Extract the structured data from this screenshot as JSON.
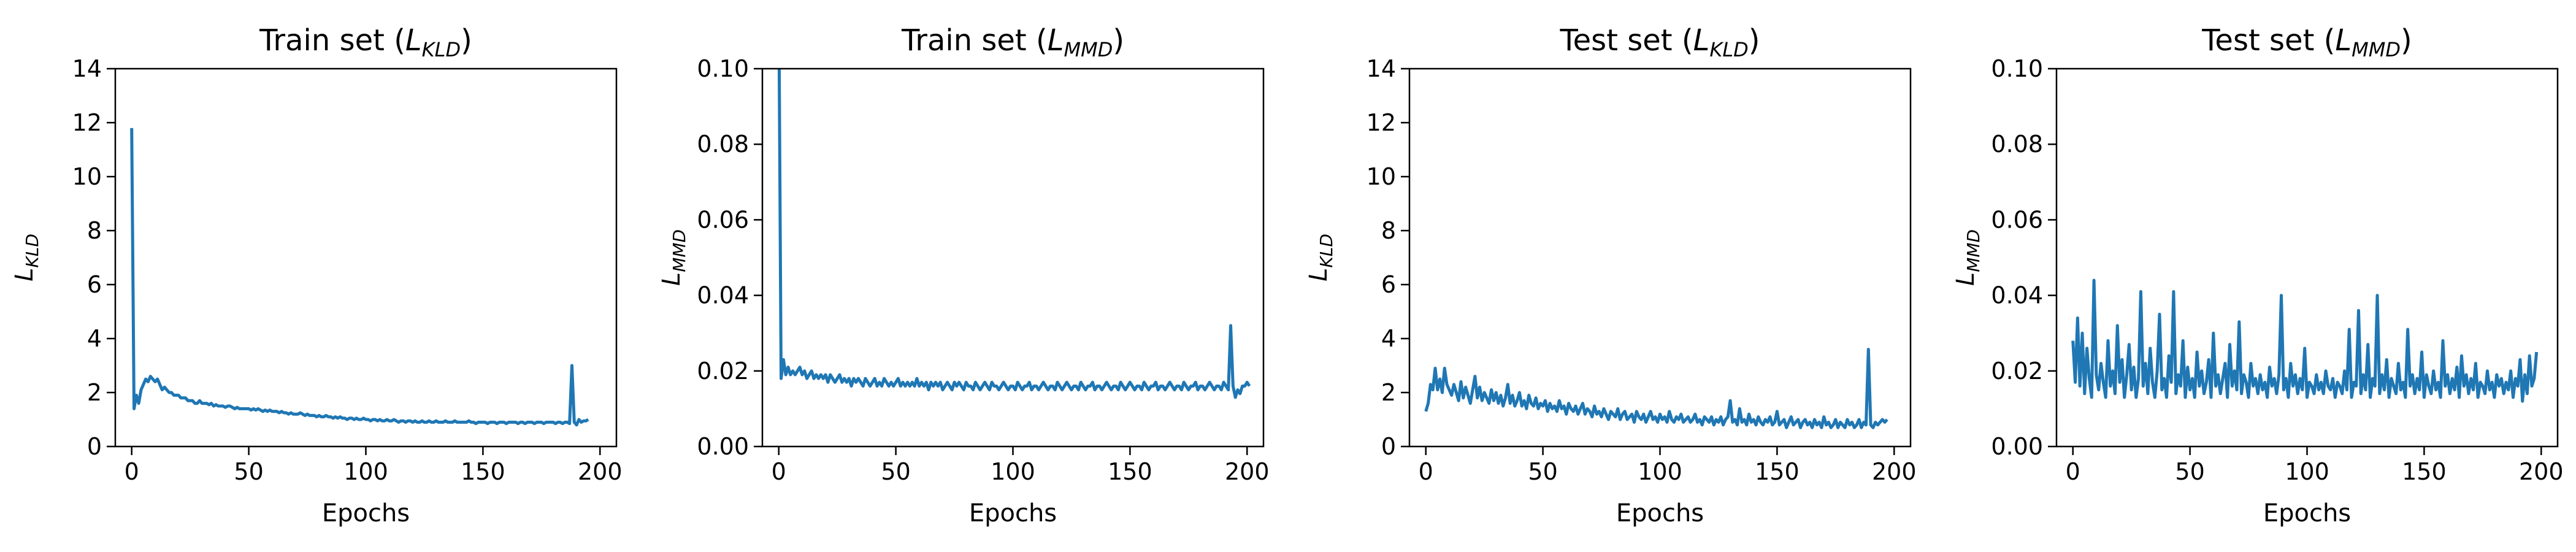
{
  "figure": {
    "line_color": "#1f77b4"
  },
  "chart_data": [
    {
      "type": "line",
      "title": "Train set (",
      "title_sym": "L",
      "title_sub": "KLD",
      "title_end": ")",
      "ylabel_sym": "L",
      "ylabel_sub": "KLD",
      "xlabel": "Epochs",
      "xlim": [
        -7,
        207
      ],
      "ylim": [
        0,
        14
      ],
      "x_ticks": [
        0,
        50,
        100,
        150,
        200
      ],
      "y_ticks": [
        0,
        2,
        4,
        6,
        8,
        10,
        12,
        14
      ],
      "y_tick_labels": [
        "0",
        "2",
        "4",
        "6",
        "8",
        "10",
        "12",
        "14"
      ],
      "series": [
        {
          "x_start": 0,
          "x_step": 1,
          "values": [
            11.8,
            1.4,
            1.9,
            1.6,
            2.1,
            2.3,
            2.5,
            2.4,
            2.6,
            2.5,
            2.4,
            2.5,
            2.3,
            2.1,
            2.2,
            2.1,
            2.0,
            2.0,
            1.9,
            1.9,
            1.9,
            1.8,
            1.8,
            1.8,
            1.7,
            1.7,
            1.7,
            1.6,
            1.6,
            1.7,
            1.6,
            1.6,
            1.6,
            1.55,
            1.6,
            1.5,
            1.55,
            1.5,
            1.5,
            1.5,
            1.45,
            1.5,
            1.5,
            1.45,
            1.4,
            1.45,
            1.4,
            1.4,
            1.4,
            1.4,
            1.4,
            1.35,
            1.4,
            1.35,
            1.4,
            1.35,
            1.3,
            1.35,
            1.3,
            1.35,
            1.3,
            1.3,
            1.3,
            1.25,
            1.3,
            1.25,
            1.25,
            1.2,
            1.25,
            1.2,
            1.2,
            1.2,
            1.25,
            1.2,
            1.15,
            1.2,
            1.15,
            1.15,
            1.15,
            1.1,
            1.15,
            1.1,
            1.1,
            1.15,
            1.1,
            1.1,
            1.05,
            1.1,
            1.05,
            1.1,
            1.05,
            1.05,
            1.0,
            1.05,
            1.05,
            1.0,
            1.05,
            1.0,
            1.0,
            1.05,
            1.0,
            1.0,
            0.95,
            1.0,
            1.0,
            0.95,
            1.0,
            0.95,
            0.95,
            1.0,
            0.95,
            0.95,
            1.0,
            0.95,
            0.9,
            0.95,
            0.95,
            0.9,
            0.95,
            0.95,
            0.9,
            0.95,
            0.9,
            0.9,
            0.95,
            0.9,
            0.9,
            0.95,
            0.9,
            0.9,
            0.95,
            0.9,
            0.9,
            0.9,
            0.95,
            0.9,
            0.9,
            0.9,
            0.95,
            0.9,
            0.9,
            0.9,
            0.9,
            0.9,
            0.95,
            0.9,
            0.9,
            0.85,
            0.9,
            0.9,
            0.9,
            0.9,
            0.85,
            0.9,
            0.9,
            0.9,
            0.85,
            0.9,
            0.9,
            0.9,
            0.85,
            0.9,
            0.9,
            0.9,
            0.9,
            0.85,
            0.9,
            0.9,
            0.85,
            0.9,
            0.9,
            0.9,
            0.85,
            0.9,
            0.9,
            0.9,
            0.85,
            0.9,
            0.9,
            0.9,
            0.9,
            0.85,
            0.9,
            0.9,
            0.85,
            0.9,
            0.9,
            0.85,
            3.0,
            0.9,
            0.8,
            1.0,
            0.9,
            0.95,
            0.95,
            1.0
          ]
        }
      ]
    },
    {
      "type": "line",
      "title": "Train set (",
      "title_sym": "L",
      "title_sub": "MMD",
      "title_end": ")",
      "ylabel_sym": "L",
      "ylabel_sub": "MMD",
      "xlabel": "Epochs",
      "xlim": [
        -7,
        207
      ],
      "ylim": [
        0,
        0.1
      ],
      "x_ticks": [
        0,
        50,
        100,
        150,
        200
      ],
      "y_ticks": [
        0,
        0.02,
        0.04,
        0.06,
        0.08,
        0.1
      ],
      "y_tick_labels": [
        "0.00",
        "0.02",
        "0.04",
        "0.06",
        "0.08",
        "0.10"
      ],
      "series": [
        {
          "x_start": 0,
          "x_step": 1,
          "values": [
            0.12,
            0.018,
            0.023,
            0.019,
            0.021,
            0.019,
            0.02,
            0.019,
            0.02,
            0.021,
            0.019,
            0.02,
            0.018,
            0.019,
            0.02,
            0.018,
            0.019,
            0.018,
            0.019,
            0.018,
            0.019,
            0.017,
            0.019,
            0.018,
            0.017,
            0.018,
            0.019,
            0.017,
            0.018,
            0.017,
            0.018,
            0.016,
            0.018,
            0.017,
            0.018,
            0.017,
            0.016,
            0.018,
            0.017,
            0.016,
            0.017,
            0.018,
            0.016,
            0.017,
            0.016,
            0.018,
            0.017,
            0.016,
            0.017,
            0.016,
            0.017,
            0.018,
            0.016,
            0.017,
            0.016,
            0.017,
            0.016,
            0.017,
            0.016,
            0.018,
            0.016,
            0.017,
            0.016,
            0.017,
            0.015,
            0.017,
            0.016,
            0.017,
            0.016,
            0.017,
            0.015,
            0.016,
            0.017,
            0.016,
            0.015,
            0.017,
            0.016,
            0.017,
            0.016,
            0.015,
            0.017,
            0.016,
            0.016,
            0.015,
            0.017,
            0.016,
            0.015,
            0.016,
            0.017,
            0.016,
            0.015,
            0.017,
            0.016,
            0.016,
            0.015,
            0.016,
            0.017,
            0.016,
            0.015,
            0.016,
            0.016,
            0.015,
            0.017,
            0.016,
            0.015,
            0.016,
            0.016,
            0.017,
            0.015,
            0.016,
            0.016,
            0.015,
            0.016,
            0.017,
            0.016,
            0.015,
            0.016,
            0.016,
            0.015,
            0.017,
            0.016,
            0.015,
            0.016,
            0.017,
            0.016,
            0.015,
            0.016,
            0.016,
            0.015,
            0.017,
            0.016,
            0.015,
            0.016,
            0.016,
            0.017,
            0.015,
            0.016,
            0.016,
            0.015,
            0.016,
            0.017,
            0.016,
            0.015,
            0.016,
            0.016,
            0.015,
            0.017,
            0.016,
            0.015,
            0.016,
            0.017,
            0.016,
            0.015,
            0.016,
            0.016,
            0.015,
            0.017,
            0.016,
            0.015,
            0.016,
            0.016,
            0.017,
            0.015,
            0.016,
            0.016,
            0.015,
            0.016,
            0.017,
            0.016,
            0.015,
            0.016,
            0.016,
            0.015,
            0.017,
            0.016,
            0.015,
            0.016,
            0.016,
            0.017,
            0.015,
            0.016,
            0.016,
            0.015,
            0.016,
            0.017,
            0.016,
            0.015,
            0.016,
            0.016,
            0.015,
            0.017,
            0.016,
            0.015,
            0.032,
            0.016,
            0.013,
            0.015,
            0.014,
            0.016,
            0.016,
            0.017,
            0.016
          ]
        }
      ]
    },
    {
      "type": "line",
      "title": "Test set (",
      "title_sym": "L",
      "title_sub": "KLD",
      "title_end": ")",
      "ylabel_sym": "L",
      "ylabel_sub": "KLD",
      "xlabel": "Epochs",
      "xlim": [
        -7,
        207
      ],
      "ylim": [
        0,
        14
      ],
      "x_ticks": [
        0,
        50,
        100,
        150,
        200
      ],
      "y_ticks": [
        0,
        2,
        4,
        6,
        8,
        10,
        12,
        14
      ],
      "y_tick_labels": [
        "0",
        "2",
        "4",
        "6",
        "8",
        "10",
        "12",
        "14"
      ],
      "series": [
        {
          "x_start": 0,
          "x_step": 1,
          "values": [
            1.3,
            1.6,
            2.3,
            2.1,
            2.9,
            2.1,
            2.5,
            2.0,
            2.9,
            2.3,
            2.1,
            1.9,
            2.3,
            2.0,
            1.7,
            2.4,
            1.8,
            2.2,
            1.9,
            1.6,
            2.1,
            2.6,
            1.8,
            2.2,
            1.7,
            2.0,
            1.8,
            1.6,
            2.1,
            1.7,
            2.0,
            1.6,
            1.9,
            1.5,
            1.8,
            2.3,
            1.6,
            1.9,
            1.5,
            1.7,
            2.0,
            1.5,
            1.7,
            1.4,
            1.9,
            1.6,
            1.5,
            1.8,
            1.4,
            1.6,
            1.5,
            1.7,
            1.3,
            1.6,
            1.4,
            1.5,
            1.3,
            1.7,
            1.4,
            1.5,
            1.2,
            1.6,
            1.4,
            1.3,
            1.5,
            1.2,
            1.4,
            1.6,
            1.2,
            1.4,
            1.3,
            1.1,
            1.5,
            1.2,
            1.3,
            1.1,
            1.4,
            1.2,
            1.0,
            1.3,
            1.2,
            1.1,
            1.4,
            1.0,
            1.2,
            1.3,
            1.0,
            1.1,
            1.2,
            0.9,
            1.3,
            1.1,
            1.0,
            1.2,
            0.9,
            1.1,
            1.3,
            1.0,
            1.1,
            0.9,
            1.2,
            1.0,
            1.1,
            0.9,
            1.3,
            1.0,
            0.9,
            1.1,
            1.0,
            1.2,
            0.9,
            1.0,
            1.1,
            0.9,
            1.0,
            1.2,
            0.9,
            1.0,
            0.8,
            1.1,
            1.0,
            0.9,
            1.1,
            0.8,
            1.0,
            0.9,
            1.1,
            0.8,
            1.0,
            1.1,
            1.7,
            0.9,
            1.0,
            0.8,
            1.4,
            0.9,
            1.0,
            0.8,
            1.2,
            0.9,
            1.0,
            0.8,
            1.1,
            0.9,
            0.8,
            1.0,
            0.9,
            1.1,
            0.8,
            0.9,
            1.3,
            0.8,
            0.9,
            1.0,
            0.7,
            0.9,
            1.1,
            0.8,
            0.9,
            1.0,
            0.7,
            0.9,
            1.0,
            0.8,
            0.9,
            0.7,
            1.0,
            0.8,
            0.9,
            0.7,
            1.1,
            0.8,
            0.9,
            0.7,
            0.8,
            1.0,
            0.7,
            0.9,
            0.8,
            0.7,
            1.0,
            0.8,
            0.9,
            0.7,
            0.8,
            1.0,
            0.7,
            0.9,
            0.8,
            3.6,
            0.8,
            0.7,
            0.9,
            0.8,
            0.9,
            1.0,
            0.9,
            1.0
          ]
        }
      ]
    },
    {
      "type": "line",
      "title": "Test set (",
      "title_sym": "L",
      "title_sub": "MMD",
      "title_end": ")",
      "ylabel_sym": "L",
      "ylabel_sub": "MMD",
      "xlabel": "Epochs",
      "xlim": [
        -7,
        207
      ],
      "ylim": [
        0,
        0.1
      ],
      "x_ticks": [
        0,
        50,
        100,
        150,
        200
      ],
      "y_ticks": [
        0,
        0.02,
        0.04,
        0.06,
        0.08,
        0.1
      ],
      "y_tick_labels": [
        "0.00",
        "0.02",
        "0.04",
        "0.06",
        "0.08",
        "0.10"
      ],
      "series": [
        {
          "x_start": 0,
          "x_step": 1,
          "values": [
            0.028,
            0.017,
            0.034,
            0.016,
            0.03,
            0.014,
            0.026,
            0.018,
            0.013,
            0.044,
            0.019,
            0.015,
            0.022,
            0.017,
            0.013,
            0.028,
            0.016,
            0.02,
            0.014,
            0.032,
            0.017,
            0.023,
            0.013,
            0.019,
            0.027,
            0.015,
            0.021,
            0.013,
            0.018,
            0.041,
            0.016,
            0.022,
            0.014,
            0.026,
            0.017,
            0.013,
            0.02,
            0.035,
            0.015,
            0.018,
            0.013,
            0.024,
            0.017,
            0.041,
            0.014,
            0.019,
            0.016,
            0.028,
            0.013,
            0.021,
            0.015,
            0.018,
            0.013,
            0.025,
            0.016,
            0.02,
            0.014,
            0.017,
            0.023,
            0.013,
            0.03,
            0.016,
            0.019,
            0.014,
            0.018,
            0.022,
            0.013,
            0.027,
            0.016,
            0.02,
            0.015,
            0.033,
            0.014,
            0.019,
            0.017,
            0.013,
            0.022,
            0.016,
            0.018,
            0.014,
            0.019,
            0.015,
            0.017,
            0.013,
            0.021,
            0.016,
            0.018,
            0.014,
            0.019,
            0.04,
            0.015,
            0.018,
            0.013,
            0.022,
            0.016,
            0.019,
            0.014,
            0.018,
            0.015,
            0.026,
            0.013,
            0.017,
            0.016,
            0.014,
            0.019,
            0.015,
            0.017,
            0.014,
            0.02,
            0.016,
            0.015,
            0.018,
            0.013,
            0.017,
            0.016,
            0.014,
            0.02,
            0.015,
            0.031,
            0.013,
            0.017,
            0.016,
            0.036,
            0.014,
            0.019,
            0.015,
            0.027,
            0.013,
            0.018,
            0.016,
            0.04,
            0.014,
            0.019,
            0.015,
            0.023,
            0.013,
            0.018,
            0.016,
            0.014,
            0.022,
            0.015,
            0.017,
            0.013,
            0.031,
            0.016,
            0.019,
            0.014,
            0.018,
            0.015,
            0.025,
            0.013,
            0.019,
            0.016,
            0.014,
            0.02,
            0.015,
            0.017,
            0.013,
            0.028,
            0.016,
            0.019,
            0.014,
            0.018,
            0.015,
            0.021,
            0.013,
            0.024,
            0.016,
            0.019,
            0.014,
            0.018,
            0.015,
            0.022,
            0.013,
            0.017,
            0.016,
            0.014,
            0.02,
            0.015,
            0.017,
            0.013,
            0.019,
            0.016,
            0.018,
            0.014,
            0.017,
            0.015,
            0.02,
            0.013,
            0.018,
            0.016,
            0.023,
            0.012,
            0.019,
            0.014,
            0.024,
            0.016,
            0.018,
            0.025
          ]
        }
      ]
    }
  ]
}
